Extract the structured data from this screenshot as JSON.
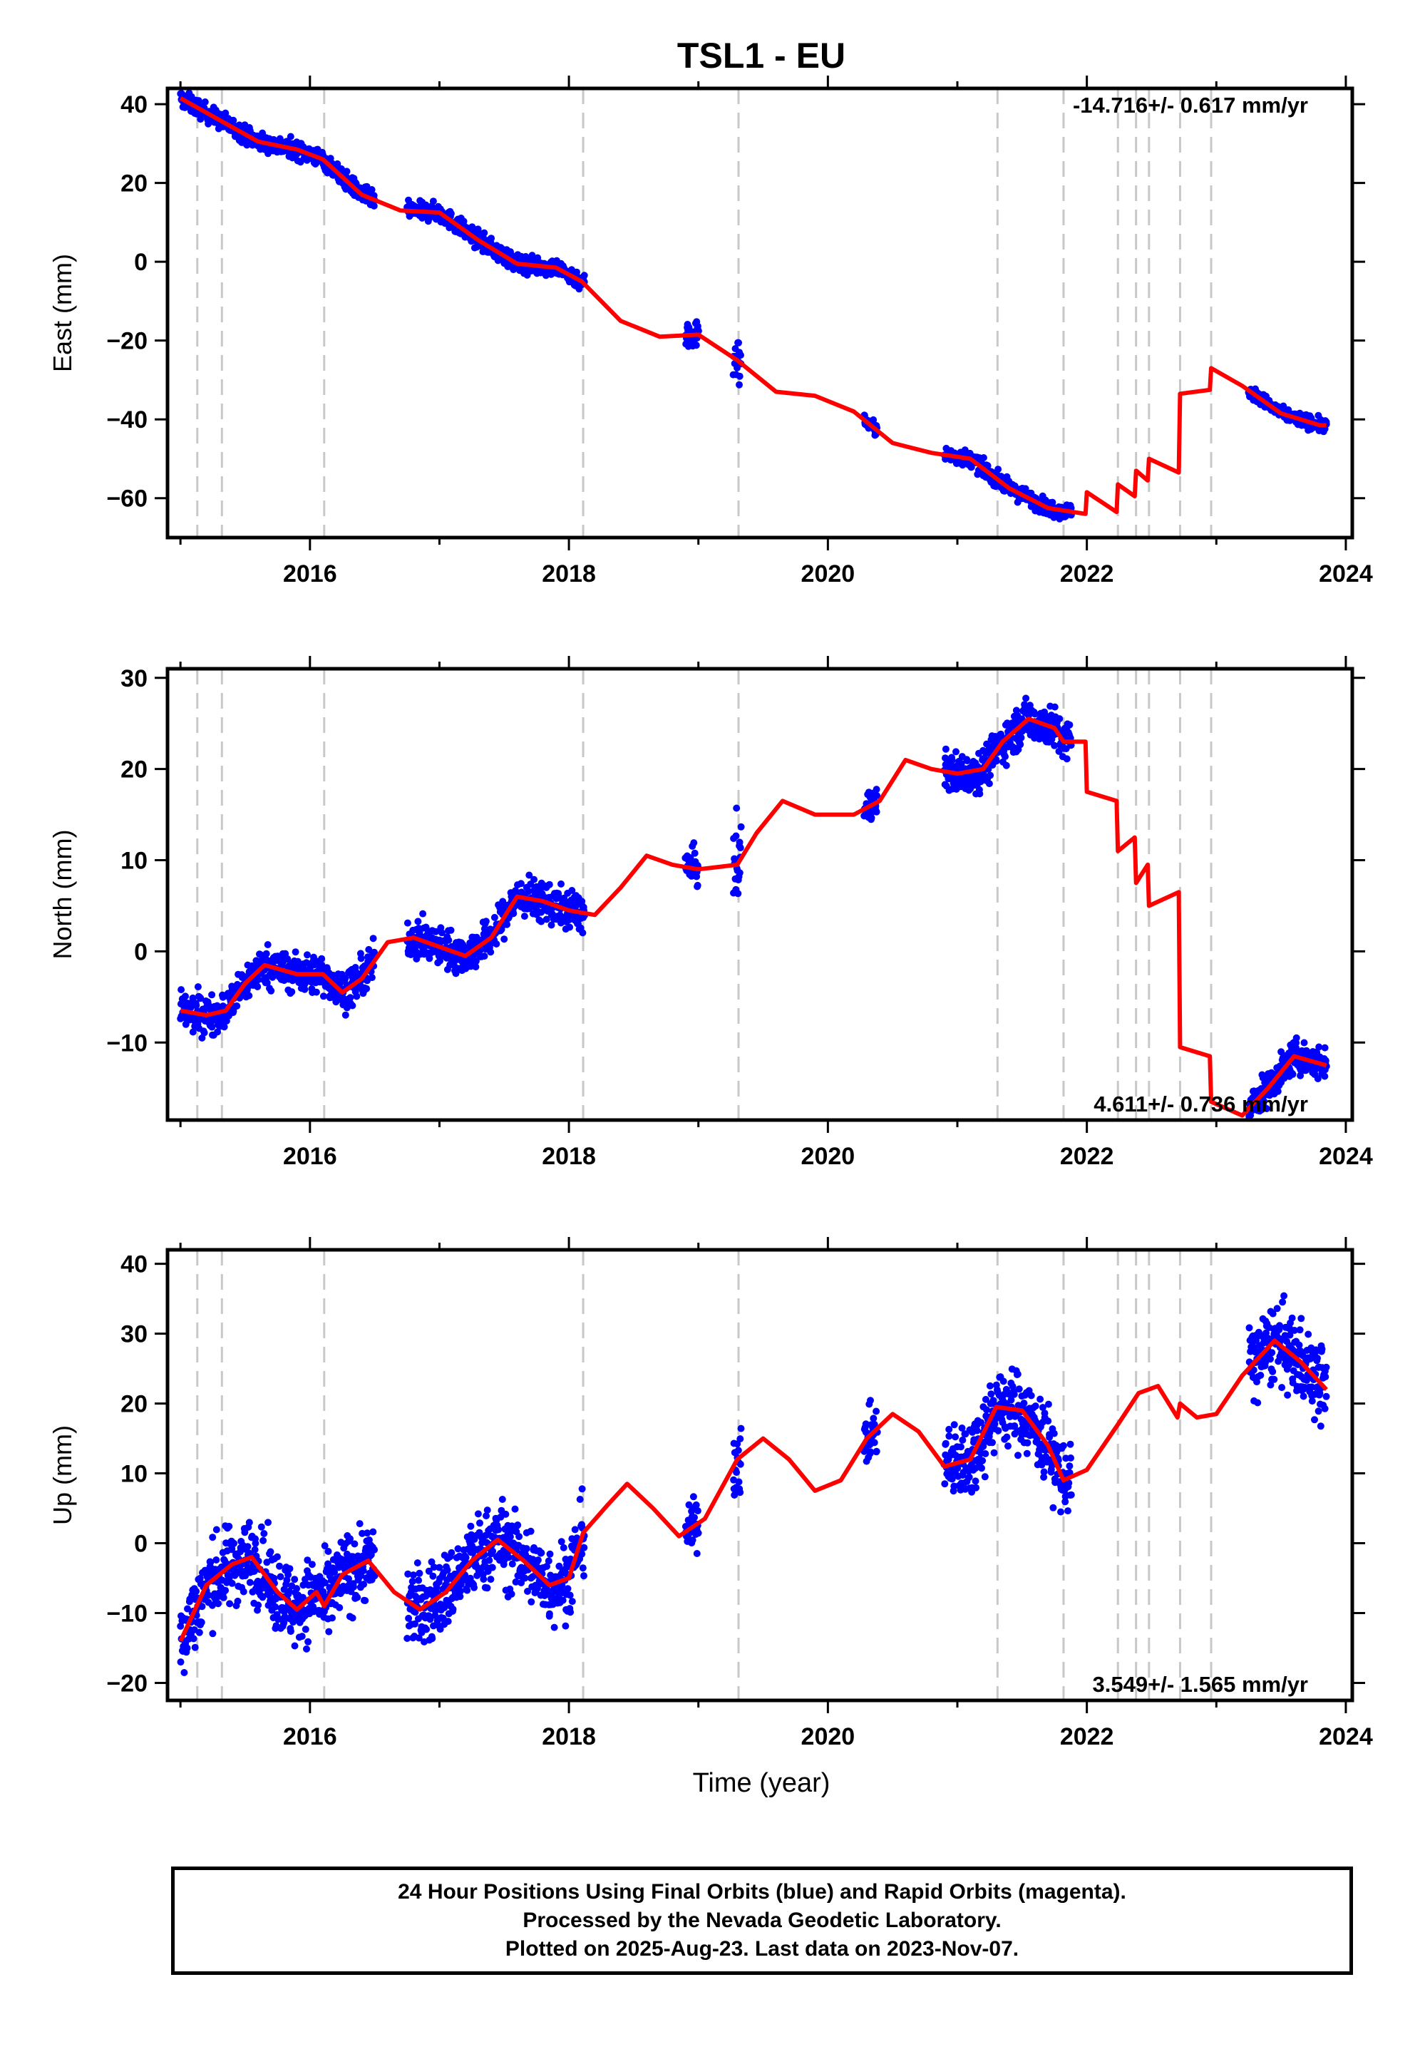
{
  "title": "TSL1 - EU",
  "colors": {
    "data": "#0000ff",
    "model": "#ff0000",
    "event_line": "#c8c8c8",
    "frame": "#000000"
  },
  "chart_data": [
    {
      "type": "scatter",
      "panel": "east",
      "ylabel": "East (mm)",
      "xlabel": "",
      "xlim": [
        2014.9,
        2024.05
      ],
      "ylim": [
        -70,
        44
      ],
      "yticks": [
        40,
        20,
        0,
        -20,
        -40,
        -60
      ],
      "xticks": [
        2016,
        2018,
        2020,
        2022,
        2024
      ],
      "rate_label": "-14.716+/- 0.617 mm/yr",
      "rate_position": "top-right",
      "event_lines": [
        2015.13,
        2015.32,
        2016.11,
        2018.11,
        2019.31,
        2021.31,
        2021.82,
        2022.24,
        2022.38,
        2022.48,
        2022.72,
        2022.96
      ],
      "series": [
        {
          "kind": "model",
          "x": [
            2015.0,
            2015.3,
            2015.6,
            2015.9,
            2016.1,
            2016.4,
            2016.7,
            2017.0,
            2017.3,
            2017.6,
            2017.9,
            2018.1,
            2018.4,
            2018.7,
            2019.0,
            2019.3,
            2019.6,
            2019.9,
            2020.2,
            2020.5,
            2020.8,
            2021.1,
            2021.4,
            2021.7,
            2021.99,
            2022.0,
            2022.23,
            2022.24,
            2022.37,
            2022.38,
            2022.47,
            2022.48,
            2022.71,
            2022.72,
            2022.95,
            2022.96,
            2023.2,
            2023.5,
            2023.8,
            2023.85
          ],
          "y": [
            41.5,
            36,
            30.5,
            28.5,
            26,
            17,
            13,
            12.5,
            5.5,
            -0.5,
            -1.5,
            -5,
            -15,
            -19,
            -18.5,
            -25,
            -33,
            -34,
            -38,
            -46,
            -48.5,
            -50,
            -57.5,
            -62.5,
            -64,
            -58.5,
            -63.5,
            -56.5,
            -59.5,
            -53,
            -55.5,
            -50,
            -53.5,
            -33.5,
            -32.5,
            -27,
            -31.5,
            -38.5,
            -41.5,
            -41.5
          ]
        },
        {
          "kind": "data",
          "segments": [
            {
              "start": 2015.0,
              "end": 2016.5,
              "jitter": 1.6
            },
            {
              "start": 2016.75,
              "end": 2018.12,
              "jitter": 1.6
            },
            {
              "start": 2018.9,
              "end": 2019.0,
              "jitter": 3
            },
            {
              "start": 2019.27,
              "end": 2019.33,
              "jitter": 4
            },
            {
              "start": 2020.28,
              "end": 2020.38,
              "jitter": 1.2
            },
            {
              "start": 2020.9,
              "end": 2021.88,
              "jitter": 1.4
            },
            {
              "start": 2023.25,
              "end": 2023.85,
              "jitter": 1.2
            }
          ]
        }
      ]
    },
    {
      "type": "scatter",
      "panel": "north",
      "ylabel": "North (mm)",
      "xlabel": "",
      "xlim": [
        2014.9,
        2024.05
      ],
      "ylim": [
        -18.5,
        31
      ],
      "yticks": [
        30,
        20,
        10,
        0,
        -10
      ],
      "xticks": [
        2016,
        2018,
        2020,
        2022,
        2024
      ],
      "rate_label": "4.611+/- 0.736 mm/yr",
      "rate_position": "bottom-right",
      "event_lines": [
        2015.13,
        2015.32,
        2016.11,
        2018.11,
        2019.31,
        2021.31,
        2021.82,
        2022.24,
        2022.38,
        2022.48,
        2022.72,
        2022.96
      ],
      "series": [
        {
          "kind": "model",
          "x": [
            2015.0,
            2015.2,
            2015.35,
            2015.5,
            2015.65,
            2015.9,
            2016.1,
            2016.25,
            2016.4,
            2016.6,
            2016.8,
            2017.0,
            2017.2,
            2017.4,
            2017.6,
            2017.8,
            2018.0,
            2018.2,
            2018.4,
            2018.6,
            2018.8,
            2019.0,
            2019.3,
            2019.45,
            2019.65,
            2019.9,
            2020.2,
            2020.4,
            2020.6,
            2020.8,
            2021.0,
            2021.2,
            2021.35,
            2021.55,
            2021.75,
            2021.82,
            2021.99,
            2022.0,
            2022.23,
            2022.24,
            2022.37,
            2022.38,
            2022.47,
            2022.48,
            2022.71,
            2022.72,
            2022.95,
            2022.96,
            2023.2,
            2023.4,
            2023.6,
            2023.85
          ],
          "y": [
            -6.5,
            -7,
            -6.5,
            -3.5,
            -1.5,
            -2.5,
            -2.5,
            -4.5,
            -3,
            1,
            1.5,
            0.5,
            -0.5,
            1.5,
            6,
            5.5,
            4.5,
            4,
            7,
            10.5,
            9.5,
            9,
            9.5,
            13,
            16.5,
            15,
            15,
            16.5,
            21,
            20,
            19.5,
            20,
            23,
            25.5,
            24.5,
            23,
            23,
            17.5,
            16.5,
            11,
            12.5,
            7.5,
            9.5,
            5,
            6.5,
            -10.5,
            -11.5,
            -16.5,
            -18,
            -15,
            -11.5,
            -12.5
          ]
        },
        {
          "kind": "data",
          "segments": [
            {
              "start": 2015.0,
              "end": 2016.5,
              "jitter": 1.5
            },
            {
              "start": 2016.75,
              "end": 2018.12,
              "jitter": 1.5
            },
            {
              "start": 2018.9,
              "end": 2019.0,
              "jitter": 1.5
            },
            {
              "start": 2019.27,
              "end": 2019.33,
              "jitter": 3
            },
            {
              "start": 2020.28,
              "end": 2020.38,
              "jitter": 1.2
            },
            {
              "start": 2020.9,
              "end": 2021.88,
              "jitter": 1.6
            },
            {
              "start": 2023.25,
              "end": 2023.85,
              "jitter": 1.3
            }
          ]
        }
      ]
    },
    {
      "type": "scatter",
      "panel": "up",
      "ylabel": "Up (mm)",
      "xlabel": "Time (year)",
      "xlim": [
        2014.9,
        2024.05
      ],
      "ylim": [
        -22.5,
        42
      ],
      "yticks": [
        40,
        30,
        20,
        10,
        0,
        -10,
        -20
      ],
      "xticks": [
        2016,
        2018,
        2020,
        2022,
        2024
      ],
      "rate_label": "3.549+/- 1.565 mm/yr",
      "rate_position": "bottom-right",
      "event_lines": [
        2015.13,
        2015.32,
        2016.11,
        2018.11,
        2019.31,
        2021.31,
        2021.82,
        2022.24,
        2022.38,
        2022.48,
        2022.72,
        2022.96
      ],
      "series": [
        {
          "kind": "model",
          "x": [
            2015.0,
            2015.2,
            2015.4,
            2015.55,
            2015.75,
            2015.9,
            2016.05,
            2016.11,
            2016.25,
            2016.45,
            2016.65,
            2016.85,
            2017.05,
            2017.25,
            2017.45,
            2017.65,
            2017.85,
            2018.0,
            2018.11,
            2018.3,
            2018.45,
            2018.65,
            2018.85,
            2019.05,
            2019.3,
            2019.5,
            2019.7,
            2019.9,
            2020.1,
            2020.3,
            2020.5,
            2020.7,
            2020.9,
            2021.1,
            2021.3,
            2021.5,
            2021.7,
            2021.82,
            2022.0,
            2022.24,
            2022.4,
            2022.55,
            2022.7,
            2022.72,
            2022.85,
            2023.0,
            2023.2,
            2023.45,
            2023.65,
            2023.85
          ],
          "y": [
            -14,
            -6,
            -3,
            -2,
            -7,
            -9.5,
            -7,
            -9,
            -4.5,
            -2.5,
            -7,
            -9.5,
            -7,
            -2.5,
            0.5,
            -2.5,
            -6,
            -5,
            1.5,
            5.5,
            8.5,
            5,
            1,
            3.5,
            12,
            15,
            12,
            7.5,
            9,
            15,
            18.5,
            16,
            11,
            12,
            19.5,
            19,
            14,
            9,
            10.5,
            17,
            21.5,
            22.5,
            18,
            20,
            18,
            18.5,
            24,
            29,
            26,
            22
          ]
        },
        {
          "kind": "data",
          "segments": [
            {
              "start": 2015.0,
              "end": 2016.5,
              "jitter": 4
            },
            {
              "start": 2016.75,
              "end": 2018.12,
              "jitter": 4
            },
            {
              "start": 2018.9,
              "end": 2019.0,
              "jitter": 2.5
            },
            {
              "start": 2019.27,
              "end": 2019.33,
              "jitter": 4
            },
            {
              "start": 2020.28,
              "end": 2020.38,
              "jitter": 2.5
            },
            {
              "start": 2020.9,
              "end": 2021.88,
              "jitter": 4
            },
            {
              "start": 2023.25,
              "end": 2023.85,
              "jitter": 4
            }
          ]
        }
      ]
    }
  ],
  "footer": {
    "line1": "24 Hour Positions Using Final Orbits (blue) and Rapid Orbits (magenta).",
    "line2": "Processed by the Nevada Geodetic Laboratory.",
    "line3": "Plotted on 2025-Aug-23. Last data on 2023-Nov-07."
  }
}
